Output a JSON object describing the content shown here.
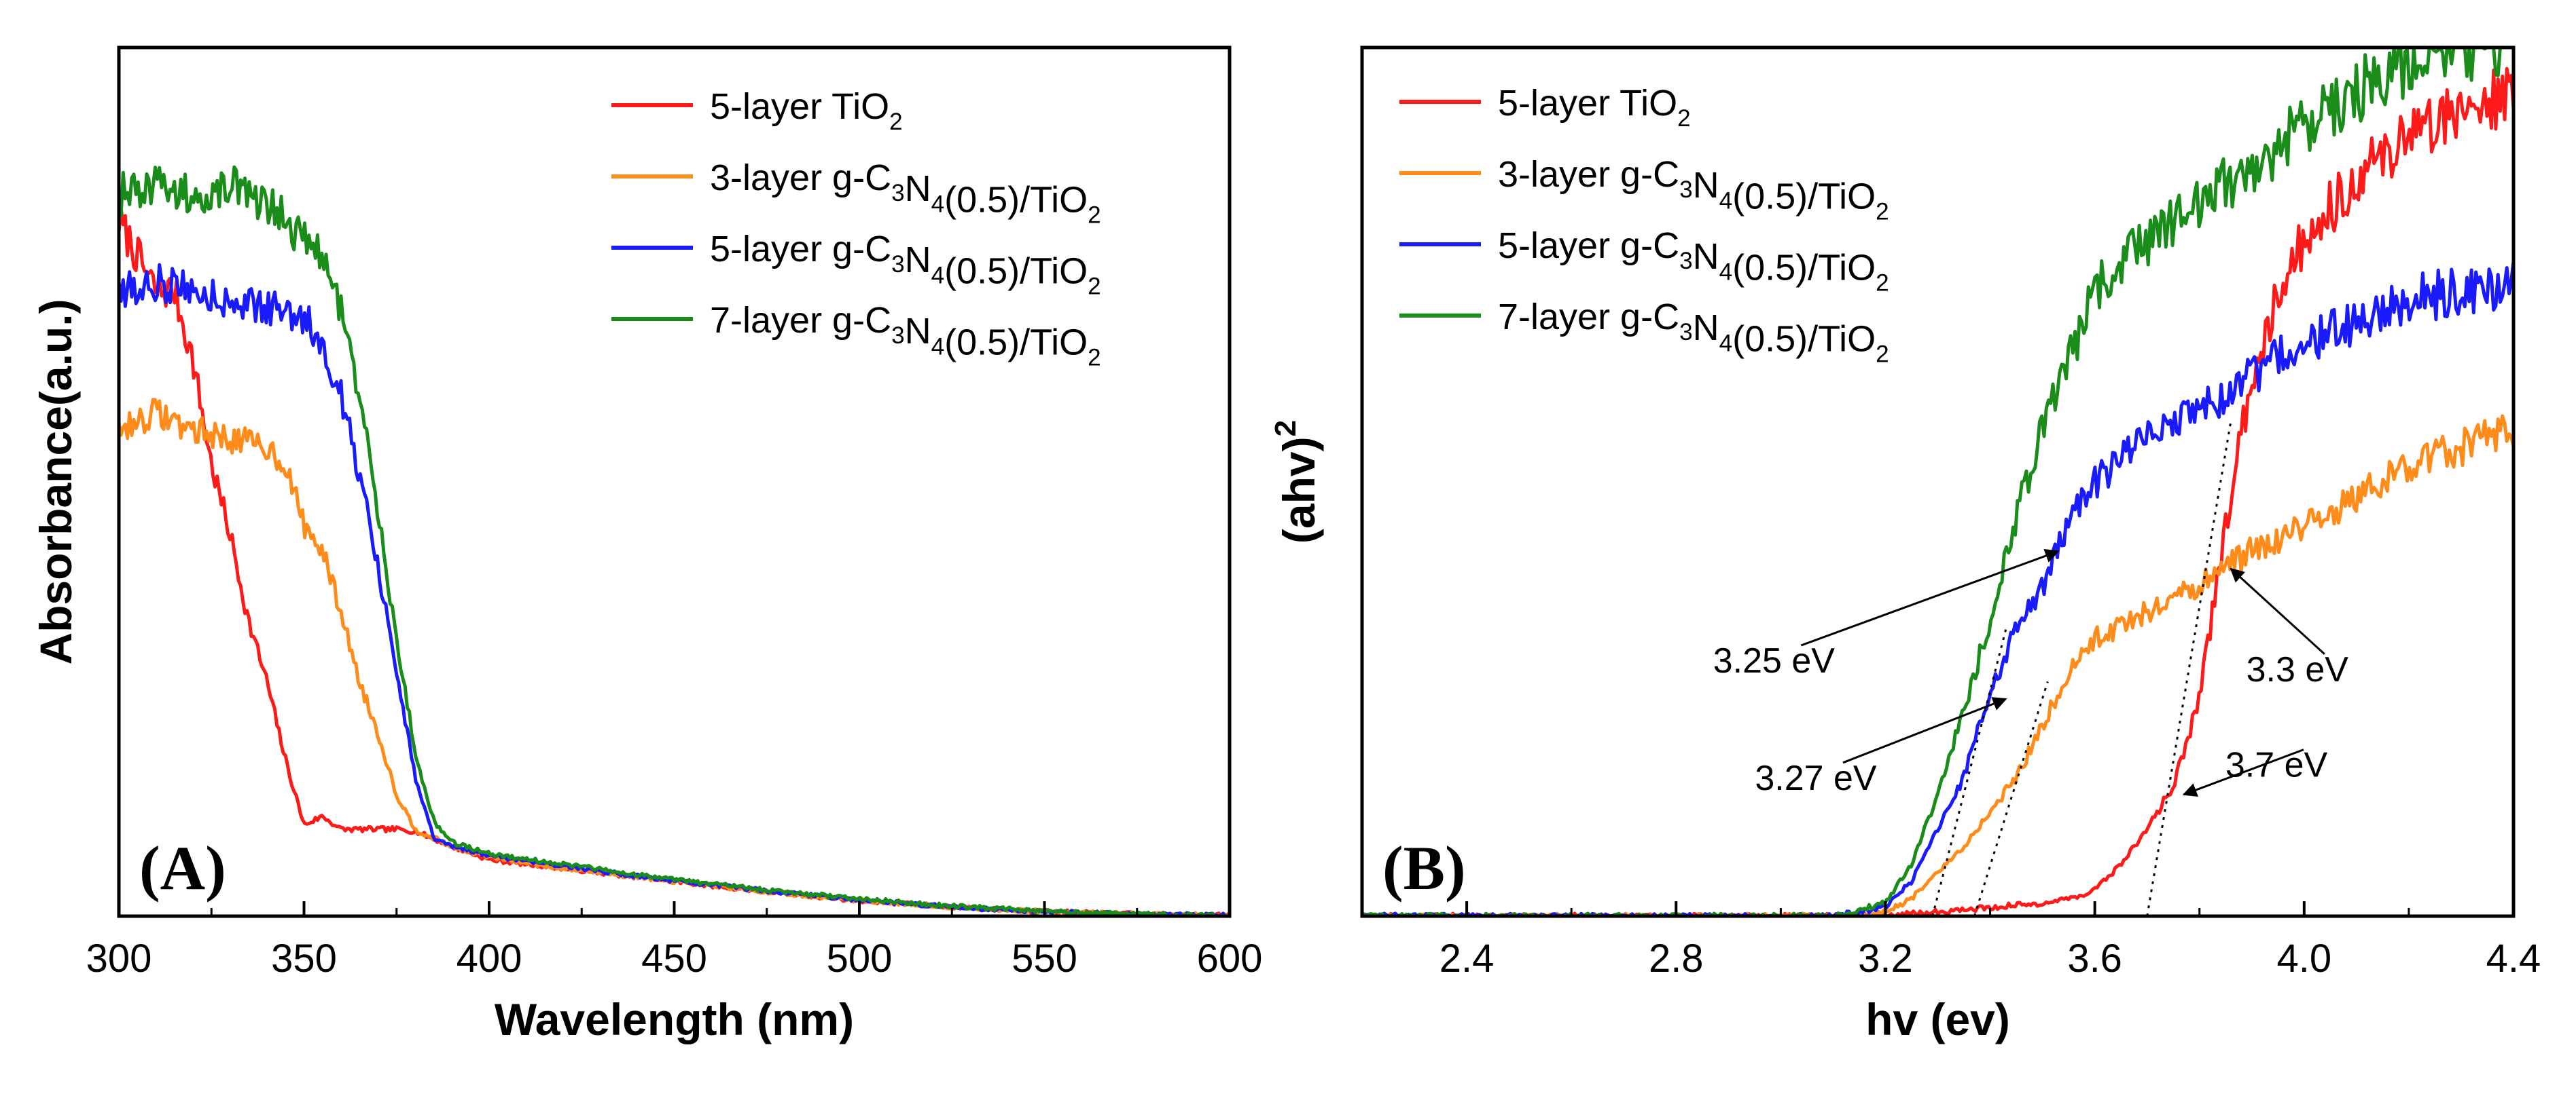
{
  "chart_data": [
    {
      "id": "A",
      "type": "line",
      "panel_label": "(A)",
      "xlabel": "Wavelength (nm)",
      "ylabel": "Absorbance(a.u.)",
      "xlim": [
        300,
        600
      ],
      "ylim": [
        0,
        1.0
      ],
      "xticks": [
        300,
        350,
        400,
        450,
        500,
        550,
        600
      ],
      "xtick_labels": [
        "300",
        "350",
        "400",
        "450",
        "500",
        "550",
        "600"
      ],
      "y_tick_labels_shown": false,
      "grid": false,
      "legend_position": "top-right",
      "series": [
        {
          "name": "5-layer TiO2",
          "legend": {
            "main": "5-layer TiO",
            "sub": "2",
            "tail": ""
          },
          "color": "#ff1a1a",
          "x": [
            300,
            305,
            310,
            315,
            320,
            325,
            330,
            335,
            340,
            345,
            350,
            355,
            360,
            365,
            370,
            375,
            380,
            390,
            400,
            420,
            440,
            460,
            480,
            500,
            520,
            540,
            560,
            580,
            600
          ],
          "y": [
            0.8,
            0.76,
            0.72,
            0.72,
            0.64,
            0.52,
            0.44,
            0.34,
            0.27,
            0.18,
            0.105,
            0.115,
            0.1,
            0.1,
            0.1,
            0.1,
            0.098,
            0.08,
            0.065,
            0.055,
            0.045,
            0.035,
            0.026,
            0.018,
            0.012,
            0.007,
            0.004,
            0.002,
            0.001
          ]
        },
        {
          "name": "3-layer g-C3N4(0.5)/TiO2",
          "legend": {
            "main": "3-layer g-C",
            "sub": "3",
            "main2": "N",
            "sub2": "4",
            "tail": "(0.5)/TiO",
            "sub3": "2"
          },
          "color": "#ff8c1a",
          "x": [
            300,
            310,
            320,
            330,
            340,
            345,
            350,
            355,
            360,
            365,
            370,
            375,
            380,
            390,
            400,
            420,
            440,
            460,
            480,
            500,
            520,
            540,
            560,
            580,
            600
          ],
          "y": [
            0.56,
            0.58,
            0.56,
            0.55,
            0.54,
            0.52,
            0.45,
            0.42,
            0.35,
            0.27,
            0.21,
            0.14,
            0.1,
            0.08,
            0.068,
            0.055,
            0.045,
            0.035,
            0.026,
            0.018,
            0.012,
            0.007,
            0.004,
            0.002,
            0.001
          ]
        },
        {
          "name": "5-layer g-C3N4(0.5)/TiO2",
          "legend": {
            "main": "5-layer g-C",
            "sub": "3",
            "main2": "N",
            "sub2": "4",
            "tail": "(0.5)/TiO",
            "sub3": "2"
          },
          "color": "#1a1aff",
          "x": [
            300,
            310,
            320,
            330,
            340,
            350,
            355,
            360,
            365,
            370,
            375,
            380,
            385,
            390,
            400,
            420,
            440,
            460,
            480,
            500,
            520,
            540,
            560,
            580,
            600
          ],
          "y": [
            0.72,
            0.73,
            0.72,
            0.71,
            0.7,
            0.69,
            0.66,
            0.6,
            0.51,
            0.4,
            0.28,
            0.16,
            0.09,
            0.08,
            0.07,
            0.058,
            0.046,
            0.036,
            0.027,
            0.019,
            0.012,
            0.007,
            0.004,
            0.002,
            0.001
          ]
        },
        {
          "name": "7-layer g-C3N4(0.5)/TiO2",
          "legend": {
            "main": "7-layer g-C",
            "sub": "3",
            "main2": "N",
            "sub2": "4",
            "tail": "(0.5)/TiO",
            "sub3": "2"
          },
          "color": "#1a8c1a",
          "x": [
            300,
            310,
            320,
            330,
            340,
            350,
            355,
            360,
            365,
            370,
            375,
            380,
            385,
            390,
            400,
            420,
            440,
            460,
            480,
            500,
            520,
            540,
            560,
            580,
            600
          ],
          "y": [
            0.83,
            0.84,
            0.83,
            0.84,
            0.82,
            0.78,
            0.76,
            0.7,
            0.6,
            0.46,
            0.32,
            0.19,
            0.11,
            0.085,
            0.072,
            0.06,
            0.048,
            0.037,
            0.028,
            0.02,
            0.013,
            0.008,
            0.004,
            0.002,
            0.001
          ]
        }
      ]
    },
    {
      "id": "B",
      "type": "line",
      "panel_label": "(B)",
      "xlabel": "hv (ev)",
      "ylabel": "(ahv)",
      "ylabel_superscript": "2",
      "xlim": [
        2.2,
        4.4
      ],
      "ylim": [
        0,
        1.0
      ],
      "xticks": [
        2.4,
        2.8,
        3.2,
        3.6,
        4.0,
        4.4
      ],
      "xtick_labels": [
        "2.4",
        "2.8",
        "3.2",
        "3.6",
        "4.0",
        "4.4"
      ],
      "y_tick_labels_shown": false,
      "grid": false,
      "legend_position": "top-left",
      "series": [
        {
          "name": "5-layer TiO2",
          "legend": {
            "main": "5-layer TiO",
            "sub": "2",
            "tail": ""
          },
          "color": "#ff1a1a",
          "x": [
            2.2,
            3.2,
            3.3,
            3.4,
            3.5,
            3.55,
            3.6,
            3.65,
            3.7,
            3.75,
            3.8,
            3.85,
            3.9,
            3.95,
            4.0,
            4.1,
            4.2,
            4.3,
            4.4
          ],
          "y": [
            0,
            0,
            0.005,
            0.01,
            0.015,
            0.02,
            0.03,
            0.06,
            0.1,
            0.15,
            0.25,
            0.45,
            0.62,
            0.72,
            0.78,
            0.85,
            0.9,
            0.93,
            0.95
          ]
        },
        {
          "name": "3-layer g-C3N4(0.5)/TiO2",
          "legend": {
            "main": "3-layer g-C",
            "sub": "3",
            "main2": "N",
            "sub2": "4",
            "tail": "(0.5)/TiO",
            "sub3": "2"
          },
          "color": "#ff8c1a",
          "x": [
            2.2,
            3.15,
            3.2,
            3.25,
            3.3,
            3.35,
            3.4,
            3.45,
            3.5,
            3.55,
            3.6,
            3.7,
            3.8,
            3.9,
            4.0,
            4.1,
            4.2,
            4.3,
            4.4
          ],
          "y": [
            0,
            0,
            0.005,
            0.02,
            0.05,
            0.08,
            0.12,
            0.16,
            0.22,
            0.28,
            0.32,
            0.35,
            0.38,
            0.42,
            0.45,
            0.48,
            0.52,
            0.54,
            0.56
          ]
        },
        {
          "name": "5-layer g-C3N4(0.5)/TiO2",
          "legend": {
            "main": "5-layer g-C",
            "sub": "3",
            "main2": "N",
            "sub2": "4",
            "tail": "(0.5)/TiO",
            "sub3": "2"
          },
          "color": "#1a1aff",
          "x": [
            2.2,
            3.1,
            3.2,
            3.25,
            3.3,
            3.35,
            3.4,
            3.45,
            3.5,
            3.55,
            3.6,
            3.7,
            3.8,
            3.9,
            4.0,
            4.1,
            4.2,
            4.3,
            4.4
          ],
          "y": [
            0,
            0,
            0.01,
            0.04,
            0.1,
            0.16,
            0.26,
            0.33,
            0.38,
            0.45,
            0.5,
            0.55,
            0.58,
            0.62,
            0.66,
            0.68,
            0.71,
            0.72,
            0.73
          ]
        },
        {
          "name": "7-layer g-C3N4(0.5)/TiO2",
          "legend": {
            "main": "7-layer g-C",
            "sub": "3",
            "main2": "N",
            "sub2": "4",
            "tail": "(0.5)/TiO",
            "sub3": "2"
          },
          "color": "#1a8c1a",
          "x": [
            2.2,
            3.1,
            3.2,
            3.25,
            3.3,
            3.35,
            3.4,
            3.45,
            3.5,
            3.55,
            3.6,
            3.7,
            3.8,
            3.9,
            4.0,
            4.1,
            4.2,
            4.3,
            4.4
          ],
          "y": [
            0,
            0,
            0.015,
            0.06,
            0.14,
            0.24,
            0.34,
            0.46,
            0.56,
            0.64,
            0.72,
            0.78,
            0.82,
            0.86,
            0.91,
            0.95,
            0.98,
            1.0,
            1.0
          ]
        }
      ],
      "tangent_lines": [
        {
          "x": [
            3.7,
            3.86
          ],
          "y": [
            0.0,
            0.57
          ]
        },
        {
          "x": [
            3.37,
            3.51
          ],
          "y": [
            0.0,
            0.27
          ]
        },
        {
          "x": [
            3.29,
            3.43
          ],
          "y": [
            0.0,
            0.33
          ]
        }
      ],
      "annotations": [
        {
          "text": "3.25 eV",
          "label_at": [
            3.0,
            0.3
          ],
          "arrow_to": [
            3.53,
            0.42
          ]
        },
        {
          "text": "3.27 eV",
          "label_at": [
            3.08,
            0.165
          ],
          "arrow_to": [
            3.43,
            0.25
          ]
        },
        {
          "text": "3.3 eV",
          "label_at": [
            4.0,
            0.29
          ],
          "arrow_to": [
            3.86,
            0.4
          ]
        },
        {
          "text": "3.7 eV",
          "label_at": [
            3.96,
            0.18
          ],
          "arrow_to": [
            3.77,
            0.14
          ]
        }
      ]
    }
  ]
}
